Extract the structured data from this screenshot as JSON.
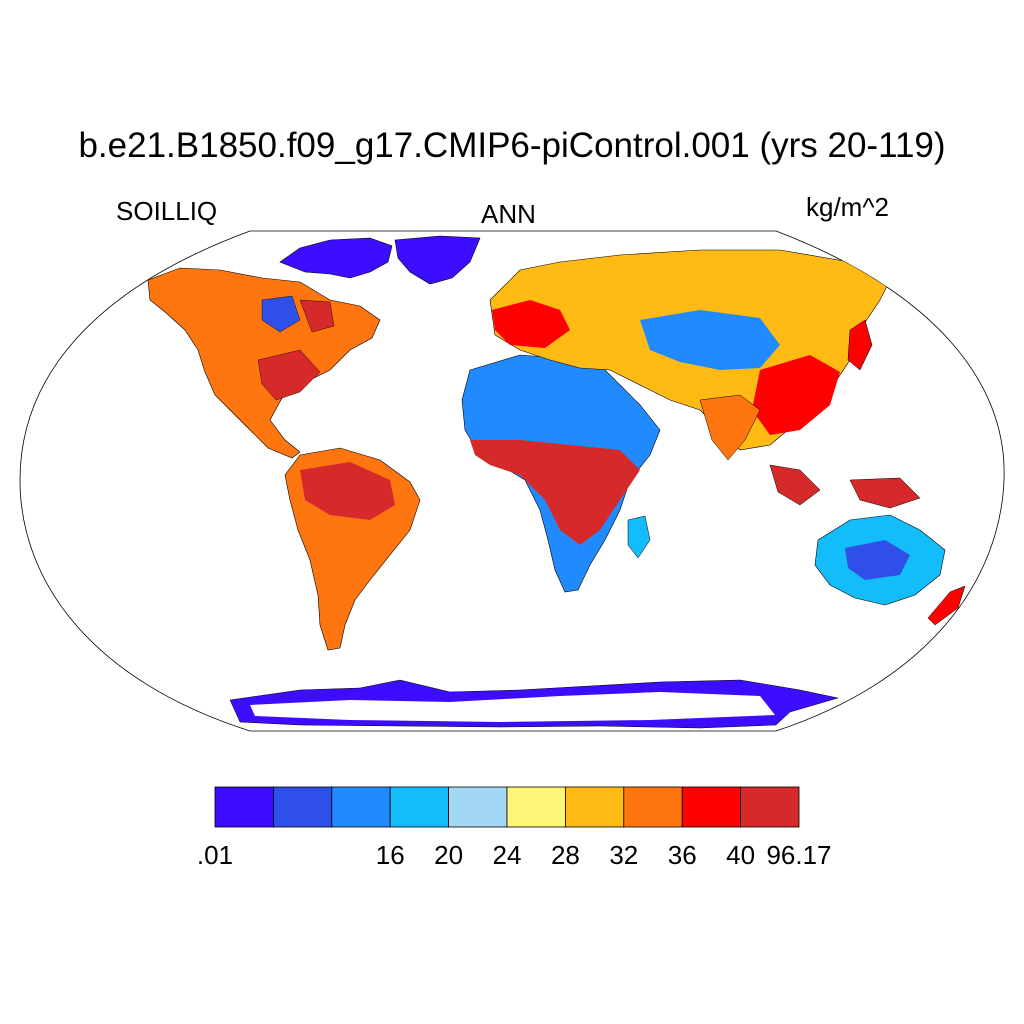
{
  "title": "b.e21.B1850.f09_g17.CMIP6-piControl.001 (yrs 20-119)",
  "left_label": "SOILLIQ",
  "center_label": "ANN",
  "right_label": "kg/m^2",
  "map": {
    "projection": "Robinson",
    "land_fill": "soil liquid water field",
    "ocean_fill": "#ffffff"
  },
  "colorbar": {
    "colors": [
      "#3d0dff",
      "#2f50e8",
      "#228aff",
      "#13bdfc",
      "#a3d8f5",
      "#fff579",
      "#ffba14",
      "#ff7510",
      "#ff0000",
      "#d62a2a"
    ],
    "tick_labels": [
      ".01",
      "16",
      "20",
      "24",
      "28",
      "32",
      "36",
      "40",
      "96.17"
    ],
    "tick_boundaries": [
      1,
      3,
      4,
      5,
      6,
      7,
      8,
      9,
      10
    ]
  }
}
